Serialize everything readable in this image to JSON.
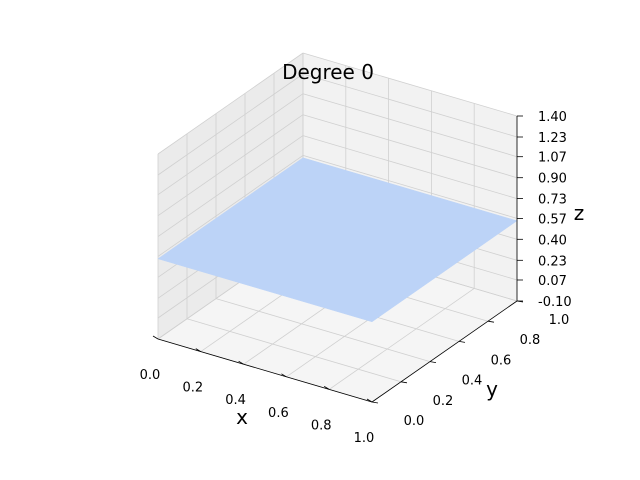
{
  "chart_data": {
    "type": "surface",
    "title": "Degree 0",
    "xlabel": "x",
    "ylabel": "y",
    "zlabel": "z",
    "xlim": [
      0.0,
      1.0
    ],
    "ylim": [
      0.0,
      1.0
    ],
    "zlim": [
      -0.1,
      1.4
    ],
    "x_ticks": [
      "0.0",
      "0.2",
      "0.4",
      "0.6",
      "0.8",
      "1.0"
    ],
    "y_ticks": [
      "0.0",
      "0.2",
      "0.4",
      "0.6",
      "0.8",
      "1.0"
    ],
    "z_ticks": [
      "-0.10",
      "0.07",
      "0.23",
      "0.40",
      "0.57",
      "0.73",
      "0.90",
      "1.07",
      "1.23",
      "1.40"
    ],
    "surface": {
      "x": [
        0.0,
        1.0
      ],
      "y": [
        0.0,
        1.0
      ],
      "z": [
        [
          0.55,
          0.55
        ],
        [
          0.55,
          0.55
        ]
      ]
    },
    "grid": true,
    "colors": {
      "surface": "#bcd3f7",
      "pane_back": "#f2f2f2",
      "pane_side": "#ebebeb",
      "pane_floor": "#f5f5f5",
      "grid": "#d0d0d0"
    }
  }
}
